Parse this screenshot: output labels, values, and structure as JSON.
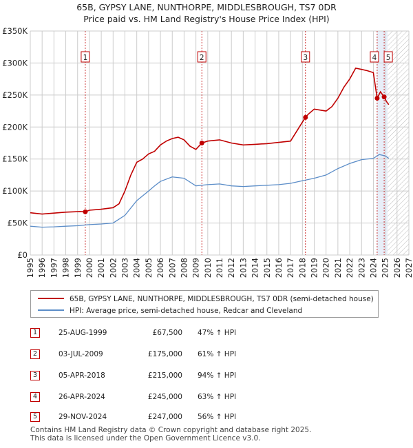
{
  "title_line1": "65B, GYPSY LANE, NUNTHORPE, MIDDLESBROUGH, TS7 0DR",
  "title_line2": "Price paid vs. HM Land Registry's House Price Index (HPI)",
  "colors": {
    "price_line": "#c00000",
    "hpi_line": "#5b8dc8",
    "shade": "#e8eef8",
    "grid": "#cccccc",
    "hatch": "#bbbbbb"
  },
  "legend": {
    "price_label": "65B, GYPSY LANE, NUNTHORPE, MIDDLESBROUGH, TS7 0DR (semi-detached house)",
    "hpi_label": "HPI: Average price, semi-detached house, Redcar and Cleveland"
  },
  "transactions": [
    {
      "num": "1",
      "date": "25-AUG-1999",
      "price": "£67,500",
      "hpi": "47% ↑ HPI"
    },
    {
      "num": "2",
      "date": "03-JUL-2009",
      "price": "£175,000",
      "hpi": "61% ↑ HPI"
    },
    {
      "num": "3",
      "date": "05-APR-2018",
      "price": "£215,000",
      "hpi": "94% ↑ HPI"
    },
    {
      "num": "4",
      "date": "26-APR-2024",
      "price": "£245,000",
      "hpi": "63% ↑ HPI"
    },
    {
      "num": "5",
      "date": "29-NOV-2024",
      "price": "£247,000",
      "hpi": "56% ↑ HPI"
    }
  ],
  "footer_line1": "Contains HM Land Registry data © Crown copyright and database right 2025.",
  "footer_line2": "This data is licensed under the Open Government Licence v3.0.",
  "chart_data": {
    "type": "line",
    "title": "65B, GYPSY LANE, NUNTHORPE, MIDDLESBROUGH, TS7 0DR",
    "subtitle": "Price paid vs. HM Land Registry's House Price Index (HPI)",
    "xlim": [
      1995,
      2027
    ],
    "ylim": [
      0,
      350000
    ],
    "x_ticks": [
      1995,
      1996,
      1997,
      1998,
      1999,
      2000,
      2001,
      2002,
      2003,
      2004,
      2005,
      2006,
      2007,
      2008,
      2009,
      2010,
      2011,
      2012,
      2013,
      2014,
      2015,
      2016,
      2017,
      2018,
      2019,
      2020,
      2021,
      2022,
      2023,
      2024,
      2025,
      2026,
      2027
    ],
    "y_ticks": [
      0,
      50000,
      100000,
      150000,
      200000,
      250000,
      300000,
      350000
    ],
    "y_tick_labels": [
      "£0",
      "£50K",
      "£100K",
      "£150K",
      "£200K",
      "£250K",
      "£300K",
      "£350K"
    ],
    "forecast_from": 2025.2,
    "shaded_from": 2024.3,
    "series": [
      {
        "name": "65B, GYPSY LANE, NUNTHORPE, MIDDLESBROUGH, TS7 0DR (semi-detached house)",
        "x": [
          1995,
          1996,
          1997,
          1998,
          1999.2,
          1999.65,
          2000,
          2001,
          2002,
          2002.5,
          2003,
          2003.5,
          2004,
          2004.5,
          2005,
          2005.5,
          2006,
          2006.5,
          2007,
          2007.5,
          2008,
          2008.5,
          2009,
          2009.5,
          2010,
          2011,
          2012,
          2013,
          2014,
          2015,
          2016,
          2017,
          2018.25,
          2018.5,
          2019,
          2020,
          2020.5,
          2021,
          2021.5,
          2022,
          2022.5,
          2023,
          2023.5,
          2024,
          2024.32,
          2024.6,
          2024.91,
          2025.1,
          2025.3
        ],
        "values": [
          66000,
          64000,
          65500,
          67000,
          68000,
          67500,
          70000,
          71500,
          74000,
          80000,
          100000,
          125000,
          145000,
          150000,
          158000,
          162000,
          172000,
          178000,
          182000,
          184000,
          180000,
          170000,
          165000,
          175000,
          178000,
          180000,
          175000,
          172000,
          173000,
          174000,
          176000,
          178000,
          215000,
          220000,
          228000,
          225000,
          232000,
          245000,
          262000,
          275000,
          292000,
          290000,
          288000,
          285000,
          245000,
          255000,
          247000,
          240000,
          235000
        ]
      },
      {
        "name": "HPI: Average price, semi-detached house, Redcar and Cleveland",
        "x": [
          1995,
          1996,
          1997,
          1998,
          1999,
          2000,
          2001,
          2002,
          2003,
          2004,
          2005,
          2005.5,
          2006,
          2007,
          2008,
          2009,
          2010,
          2011,
          2012,
          2013,
          2014,
          2015,
          2016,
          2017,
          2018,
          2019,
          2020,
          2021,
          2022,
          2023,
          2024,
          2024.5,
          2025,
          2025.3
        ],
        "values": [
          45000,
          43500,
          44000,
          45000,
          45800,
          47500,
          48500,
          50000,
          62000,
          85000,
          100000,
          108000,
          115000,
          122000,
          120000,
          108000,
          110000,
          111000,
          108000,
          107000,
          108000,
          109000,
          110000,
          112000,
          116000,
          120000,
          125000,
          135000,
          143000,
          149000,
          151000,
          157000,
          155000,
          151000
        ]
      }
    ],
    "markers": [
      {
        "label": "1",
        "x": 1999.65,
        "y": 67500
      },
      {
        "label": "2",
        "x": 2009.5,
        "y": 175000
      },
      {
        "label": "3",
        "x": 2018.26,
        "y": 215000
      },
      {
        "label": "4",
        "x": 2024.32,
        "y": 245000
      },
      {
        "label": "5",
        "x": 2024.91,
        "y": 247000
      }
    ]
  }
}
